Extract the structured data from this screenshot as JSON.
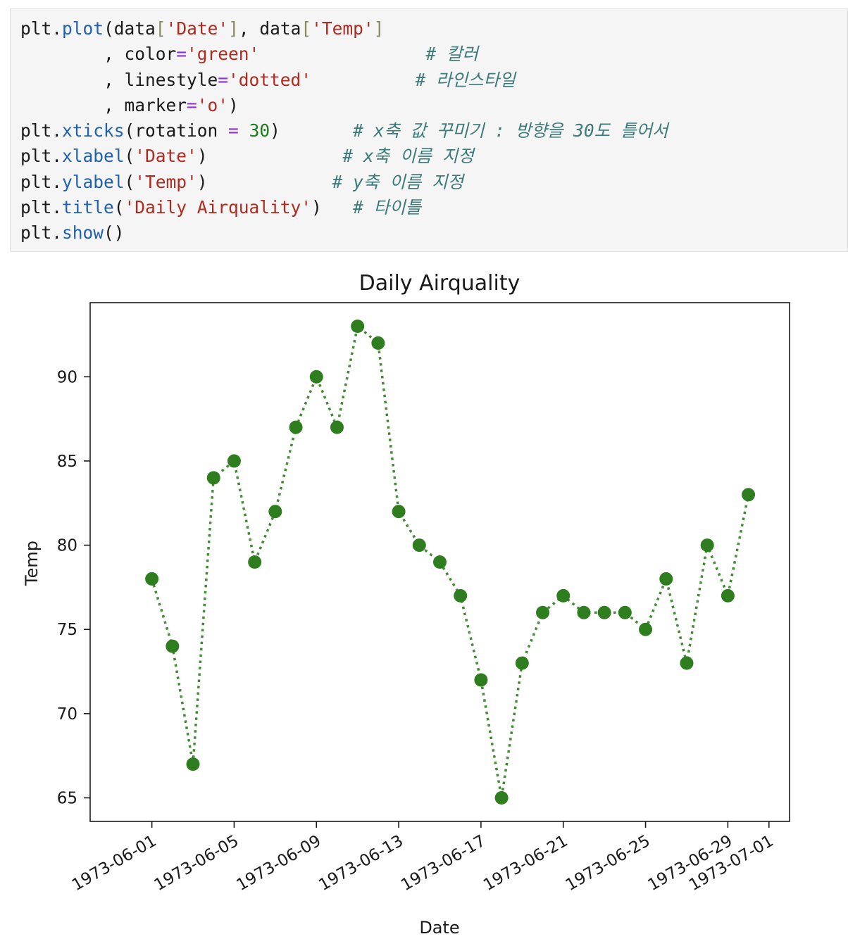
{
  "code": {
    "lines": [
      [
        [
          "",
          "plt."
        ],
        [
          "k-fn",
          "plot"
        ],
        [
          "",
          "(data"
        ],
        [
          "k-br",
          "["
        ],
        [
          "k-str",
          "'Date'"
        ],
        [
          "k-br",
          "]"
        ],
        [
          "",
          ", data"
        ],
        [
          "k-br",
          "["
        ],
        [
          "k-str",
          "'Temp'"
        ],
        [
          "k-br",
          "]"
        ]
      ],
      [
        [
          "",
          "        , color"
        ],
        [
          "k-op",
          "="
        ],
        [
          "k-str",
          "'green'"
        ],
        [
          "",
          "                "
        ],
        [
          "k-cm",
          "# 칼러"
        ]
      ],
      [
        [
          "",
          "        , linestyle"
        ],
        [
          "k-op",
          "="
        ],
        [
          "k-str",
          "'dotted'"
        ],
        [
          "",
          "          "
        ],
        [
          "k-cm",
          "# 라인스타일"
        ]
      ],
      [
        [
          "",
          "        , marker"
        ],
        [
          "k-op",
          "="
        ],
        [
          "k-str",
          "'o'"
        ],
        [
          "",
          ")"
        ]
      ],
      [
        [
          "",
          "plt."
        ],
        [
          "k-fn",
          "xticks"
        ],
        [
          "",
          "(rotation "
        ],
        [
          "k-op",
          "="
        ],
        [
          "",
          " "
        ],
        [
          "k-num",
          "30"
        ],
        [
          "",
          ")       "
        ],
        [
          "k-cm",
          "# x축 값 꾸미기 : 방향을 30도 틀어서"
        ]
      ],
      [
        [
          "",
          "plt."
        ],
        [
          "k-fn",
          "xlabel"
        ],
        [
          "",
          "("
        ],
        [
          "k-str",
          "'Date'"
        ],
        [
          "",
          ")             "
        ],
        [
          "k-cm",
          "# x축 이름 지정"
        ]
      ],
      [
        [
          "",
          "plt."
        ],
        [
          "k-fn",
          "ylabel"
        ],
        [
          "",
          "("
        ],
        [
          "k-str",
          "'Temp'"
        ],
        [
          "",
          ")            "
        ],
        [
          "k-cm",
          "# y축 이름 지정"
        ]
      ],
      [
        [
          "",
          "plt."
        ],
        [
          "k-fn",
          "title"
        ],
        [
          "",
          "("
        ],
        [
          "k-str",
          "'Daily Airquality'"
        ],
        [
          "",
          ")   "
        ],
        [
          "k-cm",
          "# 타이틀"
        ]
      ],
      [
        [
          "",
          "plt."
        ],
        [
          "k-fn",
          "show"
        ],
        [
          "",
          "()"
        ]
      ]
    ]
  },
  "chart_data": {
    "type": "line",
    "title": "Daily Airquality",
    "xlabel": "Date",
    "ylabel": "Temp",
    "line_color": "#2e7d1f",
    "linestyle": "dotted",
    "marker": "o",
    "x_tick_rotation": 30,
    "grid": false,
    "x_range": [
      "1973-05-29",
      "1973-07-02"
    ],
    "ylim": [
      63.6,
      94.4
    ],
    "x_ticks": [
      "1973-06-01",
      "1973-06-05",
      "1973-06-09",
      "1973-06-13",
      "1973-06-17",
      "1973-06-21",
      "1973-06-25",
      "1973-06-29",
      "1973-07-01"
    ],
    "y_ticks": [
      65,
      70,
      75,
      80,
      85,
      90
    ],
    "series": [
      {
        "x": [
          "1973-06-01",
          "1973-06-02",
          "1973-06-03",
          "1973-06-04",
          "1973-06-05",
          "1973-06-06",
          "1973-06-07",
          "1973-06-08",
          "1973-06-09",
          "1973-06-10",
          "1973-06-11",
          "1973-06-12",
          "1973-06-13",
          "1973-06-14",
          "1973-06-15",
          "1973-06-16",
          "1973-06-17",
          "1973-06-18",
          "1973-06-19",
          "1973-06-20",
          "1973-06-21",
          "1973-06-22",
          "1973-06-23",
          "1973-06-24",
          "1973-06-25",
          "1973-06-26",
          "1973-06-27",
          "1973-06-28",
          "1973-06-29",
          "1973-06-30"
        ],
        "values": [
          78,
          74,
          67,
          84,
          85,
          79,
          82,
          87,
          90,
          87,
          93,
          92,
          82,
          80,
          79,
          77,
          72,
          65,
          73,
          76,
          77,
          76,
          76,
          76,
          75,
          78,
          73,
          80,
          77,
          83
        ]
      }
    ]
  }
}
